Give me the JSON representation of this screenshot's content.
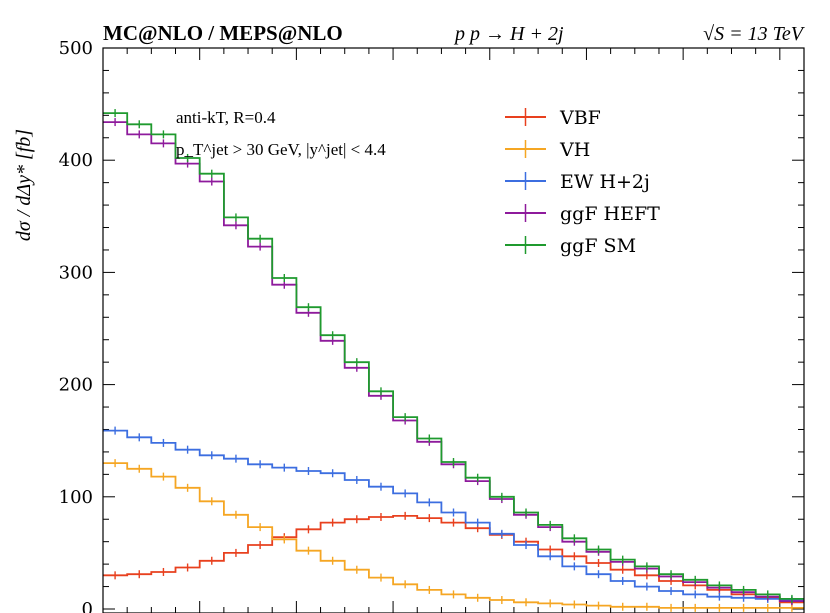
{
  "header": {
    "title_left": "MC@NLO / MEPS@NLO",
    "title_center": "p p → H + 2j",
    "title_right": "√S = 13 TeV"
  },
  "annotation": {
    "line1": "anti-kT, R=0.4",
    "line2": "p_T^jet > 30 GeV, |y^jet| < 4.4"
  },
  "chart_data": {
    "type": "line",
    "ylabel": "dσ / dΔy* [fb]",
    "xlabel": "",
    "ylim": [
      0,
      500
    ],
    "yticks": [
      0,
      100,
      200,
      300,
      400,
      500
    ],
    "legend_position": "top-right",
    "grid": false,
    "x": [
      0.25,
      0.75,
      1.25,
      1.75,
      2.25,
      2.75,
      3.25,
      3.75,
      4.25,
      4.75,
      5.25,
      5.75,
      6.25,
      6.75,
      7.25,
      7.75,
      8.25,
      8.75,
      9.25,
      9.75,
      10.25,
      10.75,
      11.25,
      11.75,
      12.25,
      12.75,
      13.25,
      13.75,
      14.25
    ],
    "series": [
      {
        "name": "VBF",
        "color": "#e8401e",
        "values": [
          30,
          31,
          33,
          37,
          43,
          50,
          57,
          64,
          71,
          77,
          80,
          82,
          83,
          81,
          77,
          72,
          66,
          60,
          53,
          47,
          41,
          35,
          30,
          25,
          21,
          17,
          13,
          10,
          6
        ]
      },
      {
        "name": "VH",
        "color": "#f5a623",
        "values": [
          130,
          125,
          118,
          108,
          96,
          84,
          73,
          62,
          52,
          43,
          35,
          28,
          22,
          17,
          13,
          10,
          8,
          6,
          5,
          4,
          3,
          2,
          2,
          1,
          1,
          1,
          1,
          1,
          1
        ]
      },
      {
        "name": "EW H+2j",
        "color": "#3c6ee0",
        "values": [
          159,
          153,
          148,
          142,
          137,
          134,
          129,
          126,
          123,
          121,
          115,
          109,
          103,
          95,
          86,
          77,
          67,
          57,
          47,
          38,
          31,
          25,
          20,
          16,
          13,
          11,
          10,
          9,
          8
        ]
      },
      {
        "name": "ggF HEFT",
        "color": "#8e1a9c",
        "values": [
          434,
          423,
          415,
          397,
          381,
          342,
          323,
          289,
          264,
          239,
          215,
          190,
          168,
          149,
          129,
          114,
          98,
          84,
          73,
          60,
          51,
          42,
          36,
          29,
          24,
          19,
          15,
          11,
          7
        ]
      },
      {
        "name": "ggF SM",
        "color": "#1f9a2e",
        "values": [
          442,
          432,
          423,
          402,
          388,
          349,
          330,
          295,
          269,
          244,
          220,
          194,
          171,
          152,
          131,
          117,
          100,
          86,
          75,
          63,
          53,
          44,
          38,
          31,
          26,
          21,
          17,
          13,
          9
        ]
      }
    ]
  }
}
